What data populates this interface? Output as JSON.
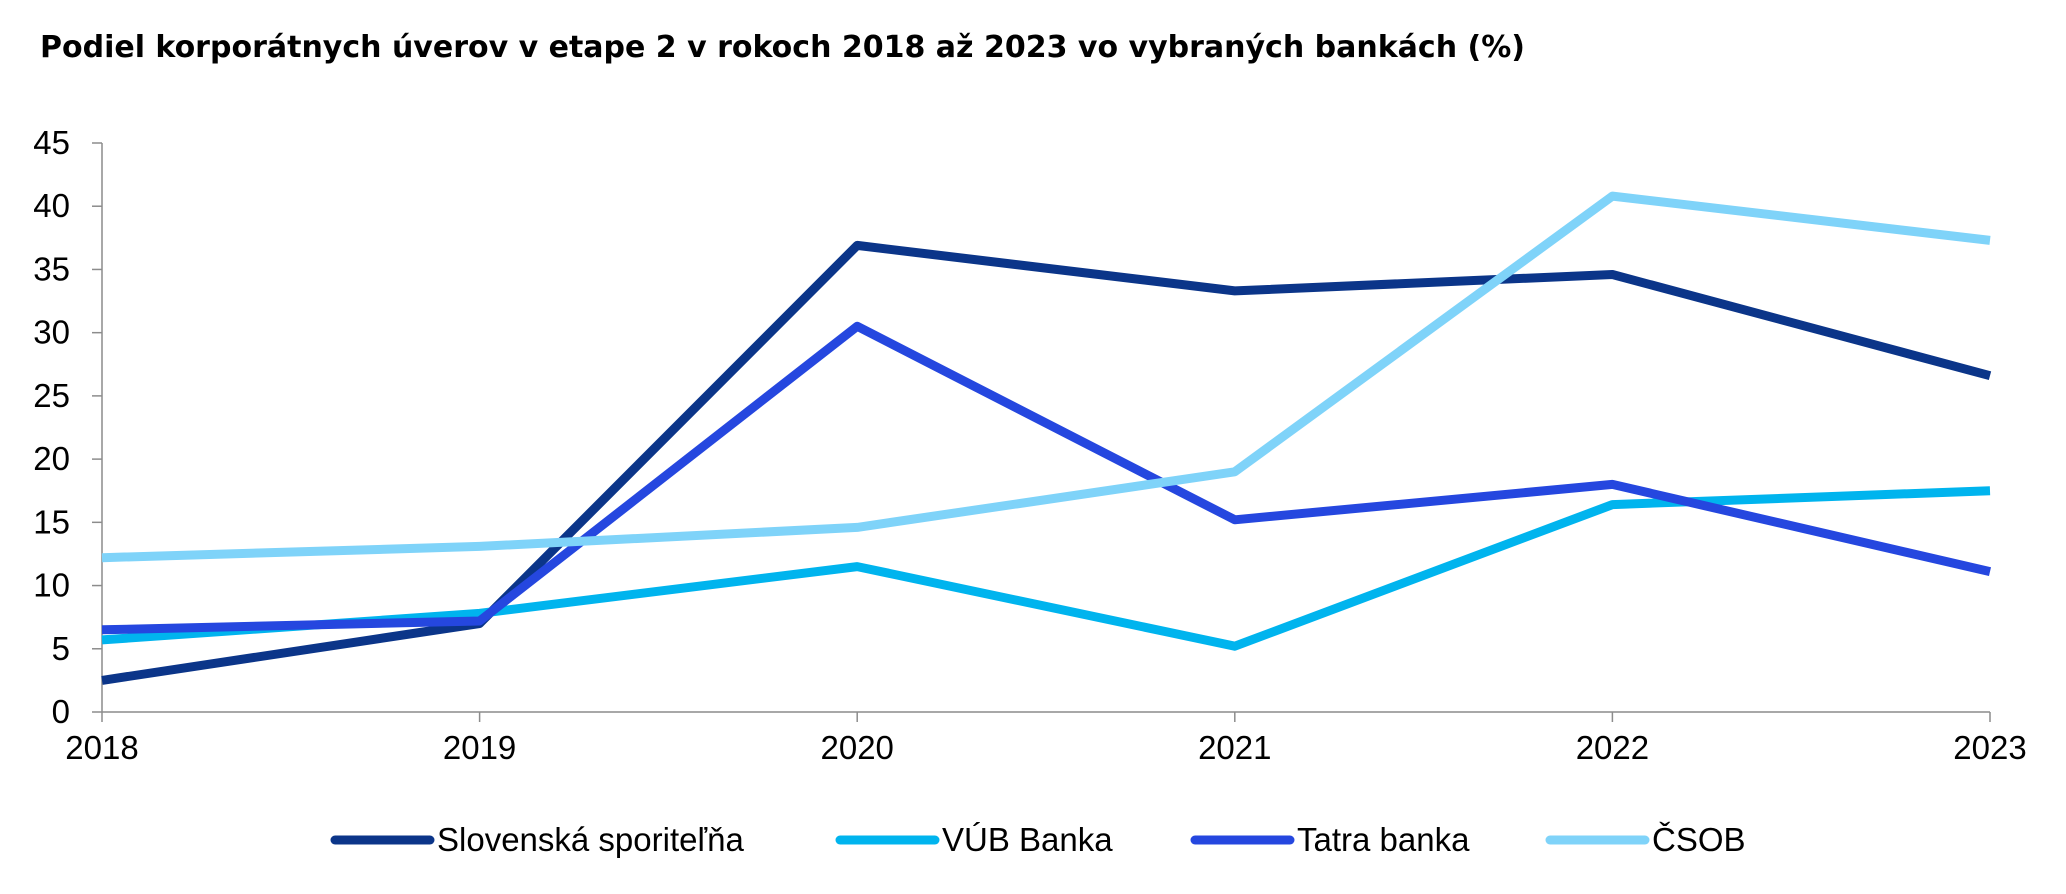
{
  "chart_data": {
    "type": "line",
    "title": "Podiel korporátnych úverov v etape 2 v rokoch 2018 až 2023 vo vybraných bankách (%)",
    "xlabel": "",
    "ylabel": "",
    "categories": [
      "2018",
      "2019",
      "2020",
      "2021",
      "2022",
      "2023"
    ],
    "ylim": [
      0,
      45
    ],
    "yticks": [
      0,
      5,
      10,
      15,
      20,
      25,
      30,
      35,
      40,
      45
    ],
    "grid": false,
    "legend_position": "bottom",
    "series": [
      {
        "name": "Slovenská sporiteľňa",
        "color": "#0b3589",
        "values": [
          2.5,
          7.0,
          36.9,
          33.3,
          34.6,
          26.6
        ]
      },
      {
        "name": "VÚB Banka",
        "color": "#00b4ee",
        "values": [
          5.7,
          7.8,
          11.5,
          5.2,
          16.4,
          17.5
        ]
      },
      {
        "name": "Tatra banka",
        "color": "#2547df",
        "values": [
          6.5,
          7.2,
          30.5,
          15.2,
          18.0,
          11.1
        ]
      },
      {
        "name": "ČSOB",
        "color": "#7fd3f9",
        "values": [
          12.2,
          13.1,
          14.6,
          19.0,
          40.8,
          37.3
        ]
      }
    ]
  }
}
